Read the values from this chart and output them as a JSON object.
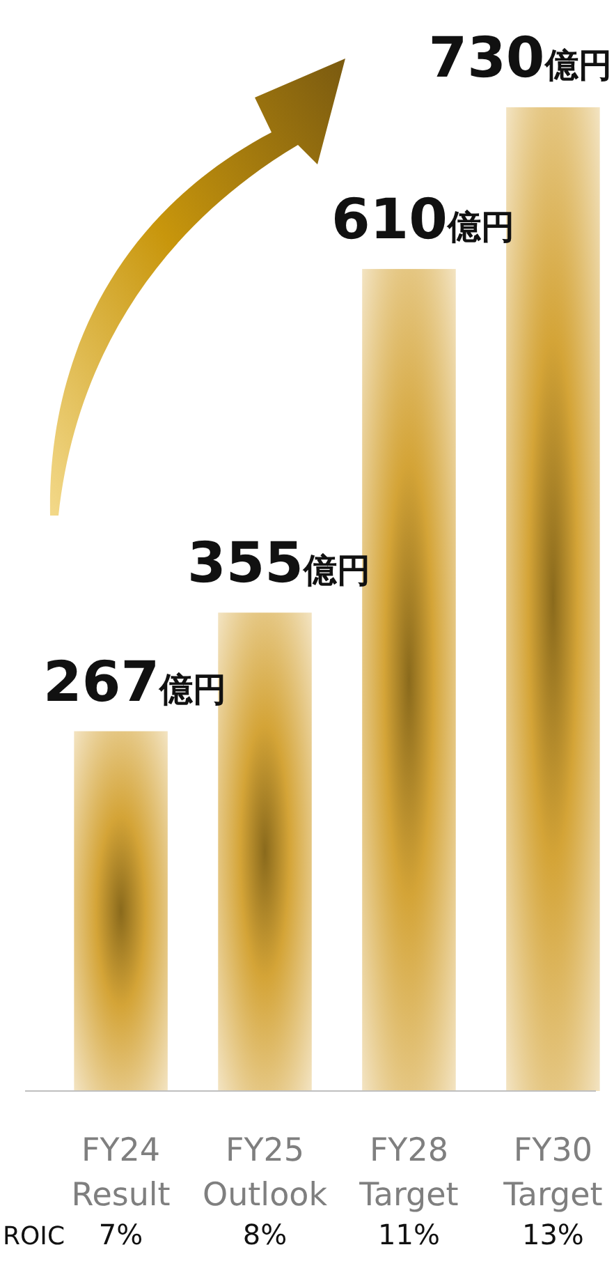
{
  "chart_data": {
    "type": "bar",
    "categories": [
      "FY24 Result",
      "FY25 Outlook",
      "FY28 Target",
      "FY30 Target"
    ],
    "values": [
      267,
      355,
      610,
      730
    ],
    "color": "#d4a437",
    "value_labels": [
      "267億円",
      "355億円",
      "610億円",
      "730億円"
    ],
    "annotations": [
      "ROIC",
      "7%",
      "8%",
      "11%",
      "13%"
    ]
  }
}
